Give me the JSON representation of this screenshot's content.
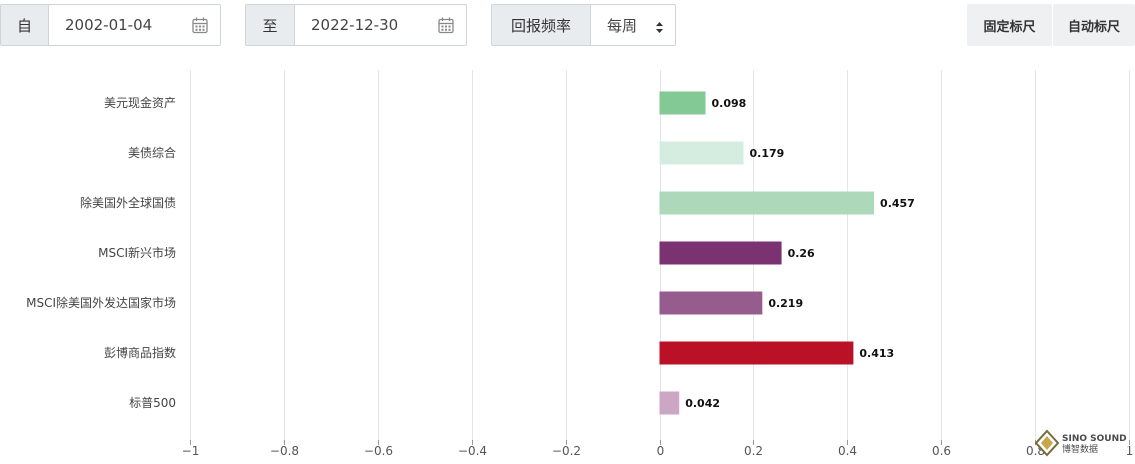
{
  "controls": {
    "from_label": "自",
    "from_date": "2002-01-04",
    "to_label": "至",
    "to_date": "2022-12-30",
    "frequency_label": "回报频率",
    "frequency_value": "每周",
    "fixed_scale_label": "固定标尺",
    "auto_scale_label": "自动标尺"
  },
  "watermark": {
    "line1": "SINO SOUND",
    "line2": "博智数据"
  },
  "chart_data": {
    "type": "bar",
    "orientation": "horizontal",
    "categories": [
      "美元现金资产",
      "美债综合",
      "除美国外全球国债",
      "MSCI新兴市场",
      "MSCI除美国外发达国家市场",
      "彭博商品指数",
      "标普500"
    ],
    "values": [
      0.098,
      0.179,
      0.457,
      0.26,
      0.219,
      0.413,
      0.042
    ],
    "data_labels": [
      "0.098",
      "0.179",
      "0.457",
      "0.26",
      "0.219",
      "0.413",
      "0.042"
    ],
    "colors": [
      "#82c996",
      "#d5ede0",
      "#add9ba",
      "#7a3370",
      "#965c8d",
      "#bb1126",
      "#cca6c5"
    ],
    "x_ticks": [
      "−1",
      "−0.8",
      "−0.6",
      "−0.4",
      "−0.2",
      "0",
      "0.2",
      "0.4",
      "0.6",
      "0.8",
      "1"
    ],
    "xlim": [
      -1,
      1
    ],
    "grid": true,
    "legend": "none"
  }
}
